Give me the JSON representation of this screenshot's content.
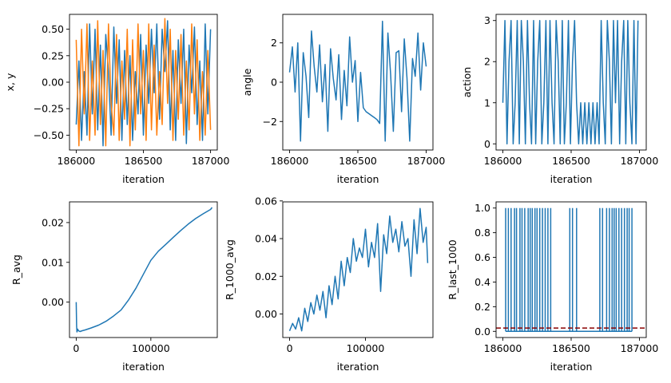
{
  "figure": {
    "background": "#ffffff"
  },
  "colors": {
    "series_blue": "#1f77b4",
    "series_orange": "#ff7f0e",
    "reference_line": "#8b0000"
  },
  "chart_data": [
    {
      "id": "xy",
      "type": "line",
      "xlabel": "iteration",
      "ylabel": "x, y",
      "xlim": [
        185950,
        187050
      ],
      "ylim": [
        -0.64,
        0.64
      ],
      "xticks": [
        186000,
        186500,
        187000
      ],
      "xtick_labels": [
        "186000",
        "186500",
        "187000"
      ],
      "yticks": [
        -0.5,
        -0.25,
        0.0,
        0.25,
        0.5
      ],
      "ytick_labels": [
        "−0.50",
        "−0.25",
        "0.00",
        "0.25",
        "0.50"
      ],
      "series": [
        {
          "color": "#1f77b4",
          "x": [
            186000,
            186020,
            186040,
            186060,
            186080,
            186100,
            186120,
            186140,
            186160,
            186180,
            186200,
            186220,
            186240,
            186260,
            186280,
            186300,
            186320,
            186340,
            186360,
            186380,
            186400,
            186420,
            186440,
            186460,
            186480,
            186500,
            186520,
            186540,
            186560,
            186580,
            186600,
            186620,
            186640,
            186660,
            186680,
            186700,
            186720,
            186740,
            186760,
            186780,
            186800,
            186820,
            186840,
            186860,
            186880,
            186900,
            186920,
            186940,
            186960,
            186980,
            187000
          ],
          "y": [
            -0.4,
            0.2,
            -0.55,
            0.1,
            -0.5,
            0.55,
            -0.3,
            0.5,
            -0.45,
            0.35,
            -0.6,
            0.45,
            0.1,
            -0.5,
            0.52,
            -0.2,
            0.4,
            -0.55,
            0.3,
            -0.4,
            0.25,
            -0.55,
            0.1,
            -0.3,
            0.45,
            -0.5,
            0.35,
            -0.2,
            0.5,
            -0.1,
            0.55,
            -0.35,
            0.5,
            0.1,
            0.58,
            -0.45,
            0.3,
            -0.55,
            0.4,
            -0.2,
            0.5,
            -0.58,
            0.35,
            -0.1,
            0.52,
            -0.4,
            0.2,
            -0.55,
            0.55,
            -0.3,
            0.5
          ]
        },
        {
          "color": "#ff7f0e",
          "x": [
            186000,
            186020,
            186040,
            186060,
            186080,
            186100,
            186120,
            186140,
            186160,
            186180,
            186200,
            186220,
            186240,
            186260,
            186280,
            186300,
            186320,
            186340,
            186360,
            186380,
            186400,
            186420,
            186440,
            186460,
            186480,
            186500,
            186520,
            186540,
            186560,
            186580,
            186600,
            186620,
            186640,
            186660,
            186680,
            186700,
            186720,
            186740,
            186760,
            186780,
            186800,
            186820,
            186840,
            186860,
            186880,
            186900,
            186920,
            186940,
            186960,
            186980,
            187000
          ],
          "y": [
            0.4,
            -0.6,
            0.5,
            -0.3,
            0.55,
            -0.55,
            0.2,
            -0.5,
            0.58,
            -0.4,
            0.3,
            -0.6,
            0.55,
            -0.2,
            -0.5,
            0.45,
            -0.55,
            0.2,
            -0.35,
            0.5,
            -0.6,
            0.4,
            -0.45,
            0.55,
            -0.3,
            0.3,
            -0.55,
            0.55,
            -0.45,
            0.35,
            -0.5,
            0.1,
            -0.4,
            0.6,
            -0.2,
            0.5,
            -0.55,
            0.3,
            -0.35,
            0.45,
            -0.5,
            0.2,
            -0.45,
            0.55,
            -0.3,
            0.4,
            -0.55,
            0.1,
            -0.5,
            0.3,
            -0.45
          ]
        }
      ]
    },
    {
      "id": "angle",
      "type": "line",
      "xlabel": "iteration",
      "ylabel": "angle",
      "xlim": [
        185950,
        187050
      ],
      "ylim": [
        -3.45,
        3.45
      ],
      "xticks": [
        186000,
        186500,
        187000
      ],
      "xtick_labels": [
        "186000",
        "186500",
        "187000"
      ],
      "yticks": [
        -2,
        0,
        2
      ],
      "ytick_labels": [
        "−2",
        "0",
        "2"
      ],
      "series": [
        {
          "color": "#1f77b4",
          "x": [
            186000,
            186020,
            186040,
            186060,
            186080,
            186100,
            186120,
            186140,
            186160,
            186180,
            186200,
            186220,
            186240,
            186260,
            186280,
            186300,
            186320,
            186340,
            186360,
            186380,
            186400,
            186420,
            186440,
            186460,
            186480,
            186500,
            186520,
            186540,
            186560,
            186580,
            186600,
            186620,
            186640,
            186660,
            186680,
            186700,
            186720,
            186740,
            186760,
            186780,
            186800,
            186820,
            186840,
            186860,
            186880,
            186900,
            186920,
            186940,
            186960,
            186980,
            187000
          ],
          "y": [
            0.5,
            1.8,
            -0.5,
            2.0,
            -3.0,
            1.5,
            0.3,
            -1.8,
            2.6,
            0.8,
            -0.5,
            1.9,
            -1.0,
            0.9,
            -2.5,
            1.7,
            0.2,
            -0.9,
            1.4,
            -1.9,
            0.6,
            -1.2,
            2.3,
            0.0,
            1.1,
            -2.0,
            0.5,
            -1.3,
            -1.5,
            -1.6,
            -1.7,
            -1.8,
            -1.9,
            -2.1,
            3.1,
            -3.0,
            2.5,
            0.4,
            -2.5,
            1.5,
            1.6,
            -1.5,
            2.2,
            0.2,
            -3.0,
            1.2,
            0.3,
            2.5,
            -0.4,
            2.0,
            0.8
          ]
        }
      ]
    },
    {
      "id": "action",
      "type": "line",
      "xlabel": "iteration",
      "ylabel": "action",
      "xlim": [
        185950,
        187050
      ],
      "ylim": [
        -0.15,
        3.15
      ],
      "xticks": [
        186000,
        186500,
        187000
      ],
      "xtick_labels": [
        "186000",
        "186500",
        "187000"
      ],
      "yticks": [
        0,
        1,
        2,
        3
      ],
      "ytick_labels": [
        "0",
        "1",
        "2",
        "3"
      ],
      "series": [
        {
          "color": "#1f77b4",
          "x": [
            186000,
            186015,
            186030,
            186045,
            186060,
            186075,
            186090,
            186105,
            186120,
            186135,
            186150,
            186165,
            186180,
            186195,
            186210,
            186225,
            186240,
            186255,
            186270,
            186285,
            186300,
            186315,
            186330,
            186345,
            186360,
            186375,
            186390,
            186405,
            186420,
            186435,
            186450,
            186465,
            186480,
            186495,
            186510,
            186525,
            186540,
            186555,
            186570,
            186585,
            186600,
            186615,
            186630,
            186645,
            186660,
            186675,
            186690,
            186705,
            186720,
            186735,
            186750,
            186765,
            186780,
            186795,
            186810,
            186825,
            186840,
            186855,
            186870,
            186885,
            186900,
            186915,
            186930,
            186945,
            186960,
            186975,
            186990
          ],
          "y": [
            1,
            3,
            0,
            2,
            3,
            0,
            1,
            3,
            0,
            3,
            2,
            0,
            3,
            1,
            0,
            3,
            0,
            2,
            3,
            0,
            1,
            3,
            0,
            3,
            1,
            0,
            3,
            2,
            0,
            3,
            0,
            1,
            3,
            0,
            2,
            3,
            1,
            0,
            1,
            0,
            1,
            0,
            1,
            0,
            1,
            0,
            1,
            0,
            3,
            1,
            0,
            3,
            2,
            0,
            3,
            1,
            3,
            0,
            2,
            3,
            0,
            3,
            1,
            0,
            3,
            0,
            3
          ]
        }
      ]
    },
    {
      "id": "r_avg",
      "type": "line",
      "xlabel": "iteration",
      "ylabel": "R_avg",
      "xlim": [
        -9000,
        189000
      ],
      "ylim": [
        -0.0089,
        0.0252
      ],
      "xticks": [
        0,
        100000
      ],
      "xtick_labels": [
        "0",
        "100000"
      ],
      "yticks": [
        0.0,
        0.01,
        0.02
      ],
      "ytick_labels": [
        "0.00",
        "0.01",
        "0.02"
      ],
      "series": [
        {
          "color": "#1f77b4",
          "x": [
            0,
            500,
            1000,
            2000,
            3000,
            5000,
            8000,
            12000,
            20000,
            30000,
            40000,
            50000,
            60000,
            70000,
            80000,
            90000,
            100000,
            110000,
            120000,
            130000,
            140000,
            150000,
            160000,
            170000,
            180000,
            182000
          ],
          "y": [
            0.0,
            -0.006,
            -0.0075,
            -0.0068,
            -0.0072,
            -0.0074,
            -0.0072,
            -0.007,
            -0.0065,
            -0.0058,
            -0.0048,
            -0.0035,
            -0.002,
            0.0005,
            0.0035,
            0.007,
            0.0105,
            0.0128,
            0.0145,
            0.0163,
            0.018,
            0.0196,
            0.021,
            0.0222,
            0.0233,
            0.0238
          ]
        }
      ]
    },
    {
      "id": "r_1000_avg",
      "type": "line",
      "xlabel": "iteration",
      "ylabel": "R_1000_avg",
      "xlim": [
        -9000,
        189000
      ],
      "ylim": [
        -0.0125,
        0.0595
      ],
      "xticks": [
        0,
        100000
      ],
      "xtick_labels": [
        "0",
        "100000"
      ],
      "yticks": [
        0.0,
        0.02,
        0.04,
        0.06
      ],
      "ytick_labels": [
        "0.00",
        "0.02",
        "0.04",
        "0.06"
      ],
      "series": [
        {
          "color": "#1f77b4",
          "x": [
            0,
            4000,
            8000,
            12000,
            16000,
            20000,
            24000,
            28000,
            32000,
            36000,
            40000,
            44000,
            48000,
            52000,
            56000,
            60000,
            64000,
            68000,
            72000,
            76000,
            80000,
            84000,
            88000,
            92000,
            96000,
            100000,
            104000,
            108000,
            112000,
            116000,
            120000,
            124000,
            128000,
            132000,
            136000,
            140000,
            144000,
            148000,
            152000,
            156000,
            160000,
            164000,
            168000,
            172000,
            176000,
            180000,
            182000
          ],
          "y": [
            -0.009,
            -0.005,
            -0.008,
            -0.002,
            -0.009,
            0.003,
            -0.004,
            0.006,
            0.0,
            0.01,
            0.002,
            0.012,
            -0.002,
            0.015,
            0.005,
            0.02,
            0.008,
            0.028,
            0.015,
            0.03,
            0.022,
            0.04,
            0.028,
            0.035,
            0.03,
            0.045,
            0.025,
            0.038,
            0.03,
            0.048,
            0.012,
            0.042,
            0.032,
            0.052,
            0.038,
            0.045,
            0.033,
            0.049,
            0.036,
            0.04,
            0.02,
            0.05,
            0.032,
            0.056,
            0.038,
            0.046,
            0.027
          ]
        }
      ]
    },
    {
      "id": "r_last_1000",
      "type": "line",
      "xlabel": "iteration",
      "ylabel": "R_last_1000",
      "xlim": [
        185950,
        187050
      ],
      "ylim": [
        -0.05,
        1.05
      ],
      "xticks": [
        186000,
        186500,
        187000
      ],
      "xtick_labels": [
        "186000",
        "186500",
        "187000"
      ],
      "yticks": [
        0.0,
        0.2,
        0.4,
        0.6,
        0.8,
        1.0
      ],
      "ytick_labels": [
        "0.0",
        "0.2",
        "0.4",
        "0.6",
        "0.8",
        "1.0"
      ],
      "hline": {
        "y": 0.027,
        "color": "#8b0000",
        "style": "dashed"
      },
      "series": [
        {
          "color": "#1f77b4",
          "spikes": [
            186020,
            186040,
            186060,
            186085,
            186100,
            186125,
            186140,
            186160,
            186185,
            186200,
            186215,
            186235,
            186250,
            186270,
            186290,
            186310,
            186330,
            186350,
            186490,
            186510,
            186540,
            186710,
            186730,
            186760,
            186780,
            186800,
            186815,
            186830,
            186850,
            186870,
            186890,
            186910,
            186925,
            186945
          ],
          "base": 0,
          "top": 1
        }
      ]
    }
  ]
}
